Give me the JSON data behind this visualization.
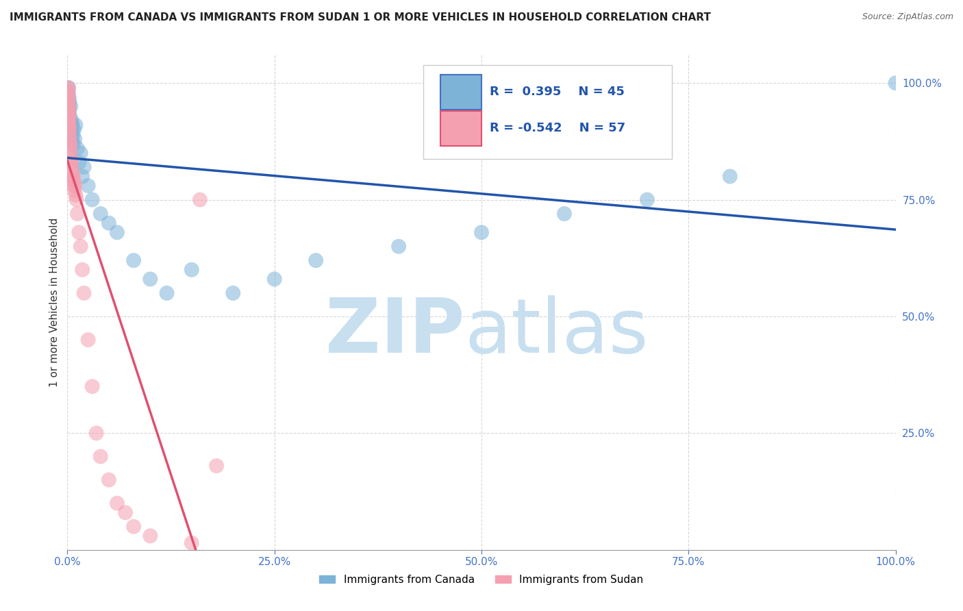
{
  "title": "IMMIGRANTS FROM CANADA VS IMMIGRANTS FROM SUDAN 1 OR MORE VEHICLES IN HOUSEHOLD CORRELATION CHART",
  "source": "Source: ZipAtlas.com",
  "ylabel": "1 or more Vehicles in Household",
  "canada_R": 0.395,
  "canada_N": 45,
  "sudan_R": -0.542,
  "sudan_N": 57,
  "canada_color": "#7eb3d8",
  "sudan_color": "#f4a0b0",
  "canada_line_color": "#2255aa",
  "sudan_line_color": "#e05070",
  "background_color": "#ffffff",
  "watermark_zip_color": "#c8dff0",
  "watermark_atlas_color": "#c8dff0",
  "title_fontsize": 11,
  "source_fontsize": 9,
  "canada_x": [
    0.05,
    0.08,
    0.1,
    0.12,
    0.15,
    0.18,
    0.2,
    0.22,
    0.25,
    0.28,
    0.3,
    0.35,
    0.4,
    0.45,
    0.5,
    0.55,
    0.6,
    0.65,
    0.7,
    0.8,
    0.9,
    1.0,
    1.2,
    1.4,
    1.6,
    1.8,
    2.0,
    2.5,
    3.0,
    4.0,
    5.0,
    6.0,
    8.0,
    10.0,
    12.0,
    15.0,
    20.0,
    25.0,
    30.0,
    40.0,
    50.0,
    60.0,
    70.0,
    80.0,
    100.0
  ],
  "canada_y": [
    95,
    97,
    98,
    96,
    99,
    97,
    95,
    94,
    96,
    93,
    92,
    91,
    95,
    90,
    92,
    88,
    91,
    89,
    87,
    90,
    88,
    91,
    86,
    83,
    85,
    80,
    82,
    78,
    75,
    72,
    70,
    68,
    62,
    58,
    55,
    60,
    55,
    58,
    62,
    65,
    68,
    72,
    75,
    80,
    100
  ],
  "sudan_x": [
    0.02,
    0.03,
    0.04,
    0.05,
    0.06,
    0.07,
    0.08,
    0.09,
    0.1,
    0.11,
    0.12,
    0.13,
    0.14,
    0.15,
    0.16,
    0.17,
    0.18,
    0.19,
    0.2,
    0.22,
    0.24,
    0.26,
    0.28,
    0.3,
    0.32,
    0.35,
    0.38,
    0.4,
    0.45,
    0.5,
    0.55,
    0.6,
    0.65,
    0.7,
    0.75,
    0.8,
    0.85,
    0.9,
    1.0,
    1.1,
    1.2,
    1.4,
    1.6,
    1.8,
    2.0,
    2.5,
    3.0,
    3.5,
    4.0,
    5.0,
    6.0,
    7.0,
    8.0,
    10.0,
    15.0,
    16.0,
    18.0
  ],
  "sudan_y": [
    99,
    98,
    97,
    99,
    96,
    98,
    95,
    97,
    94,
    96,
    93,
    95,
    92,
    94,
    91,
    93,
    90,
    92,
    91,
    89,
    90,
    87,
    88,
    86,
    87,
    85,
    83,
    84,
    82,
    83,
    80,
    81,
    79,
    80,
    78,
    79,
    77,
    78,
    76,
    75,
    72,
    68,
    65,
    60,
    55,
    45,
    35,
    25,
    20,
    15,
    10,
    8,
    5,
    3,
    1.5,
    75,
    18
  ]
}
